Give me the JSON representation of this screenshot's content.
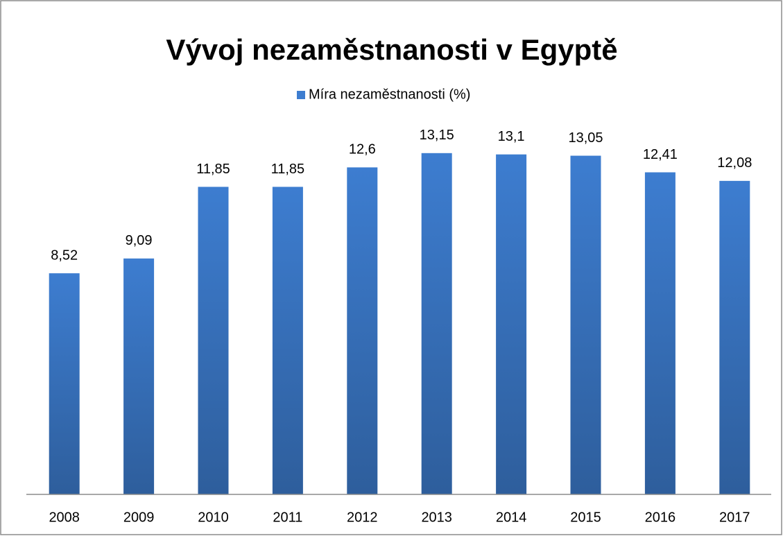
{
  "chart_data": {
    "type": "bar",
    "title": "Vývoj nezaměstnanosti v Egyptě",
    "categories": [
      "2008",
      "2009",
      "2010",
      "2011",
      "2012",
      "2013",
      "2014",
      "2015",
      "2016",
      "2017"
    ],
    "series": [
      {
        "name": "Míra nezaměstnanosti (%)",
        "color": "#3d7dd0",
        "values": [
          8.52,
          9.09,
          11.85,
          11.85,
          12.6,
          13.15,
          13.1,
          13.05,
          12.41,
          12.08
        ],
        "value_labels": [
          "8,52",
          "9,09",
          "11,85",
          "11,85",
          "12,6",
          "13,15",
          "13,1",
          "13,05",
          "12,41",
          "12,08"
        ]
      }
    ],
    "ylim": [
      0,
      14
    ],
    "legend": "top"
  }
}
